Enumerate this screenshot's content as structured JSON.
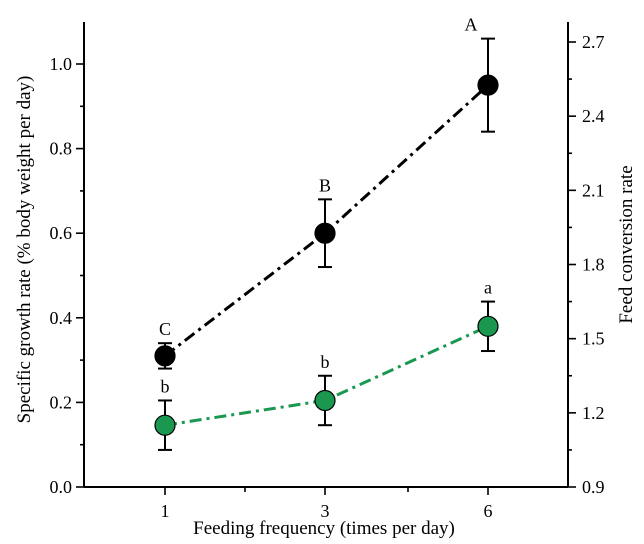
{
  "chart_data": {
    "type": "line",
    "xlabel": "Feeding frequency (times per day)",
    "ylabel_left": "Specific growth rate  (% body weight per day)",
    "ylabel_right": "Feed conversion rate",
    "categories": [
      "1",
      "3",
      "6"
    ],
    "x": [
      1,
      3,
      6
    ],
    "ylim_left": [
      0.0,
      1.0
    ],
    "yticks_left": [
      "0.0",
      "0.2",
      "0.4",
      "0.6",
      "0.8",
      "1.0"
    ],
    "ylim_right": [
      0.9,
      2.7
    ],
    "yticks_right": [
      "0.9",
      "1.2",
      "1.5",
      "1.8",
      "2.1",
      "2.4",
      "2.7"
    ],
    "grid": false,
    "series": [
      {
        "axis": "left",
        "color": "#000000",
        "marker_fill": "#000000",
        "line_style": "dash-dot",
        "values": [
          0.31,
          0.6,
          0.95
        ],
        "errors": [
          0.03,
          0.08,
          0.11
        ],
        "labels": [
          "C",
          "B",
          "A"
        ]
      },
      {
        "axis": "right",
        "color": "#1a9850",
        "marker_fill": "#1a9850",
        "line_style": "dash-dot",
        "values": [
          1.15,
          1.25,
          1.55
        ],
        "errors": [
          0.1,
          0.1,
          0.1
        ],
        "labels": [
          "b",
          "b",
          "a"
        ]
      }
    ]
  }
}
